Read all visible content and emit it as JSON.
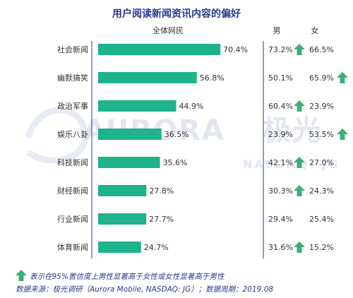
{
  "chart_data": {
    "type": "bar",
    "title": "用户阅读新闻资讯内容的偏好",
    "series_label": "全体网民",
    "male_label": "男",
    "female_label": "女",
    "categories": [
      "社会新闻",
      "幽默搞笑",
      "政治军事",
      "娱乐八卦",
      "科技新闻",
      "财经新闻",
      "行业新闻",
      "体育新闻"
    ],
    "values": [
      70.4,
      56.8,
      44.9,
      36.5,
      35.6,
      27.8,
      27.7,
      24.7
    ],
    "value_labels": [
      "70.4%",
      "56.8%",
      "44.9%",
      "36.5%",
      "35.6%",
      "27.8%",
      "27.7%",
      "24.7%"
    ],
    "male": [
      "73.2%",
      "50.1%",
      "60.4%",
      "23.9%",
      "42.1%",
      "30.3%",
      "29.4%",
      "31.6%"
    ],
    "female": [
      "66.5%",
      "65.9%",
      "23.9%",
      "53.5%",
      "27.0%",
      "24.3%",
      "25.4%",
      "15.2%"
    ],
    "male_significant": [
      true,
      false,
      true,
      false,
      true,
      true,
      false,
      true
    ],
    "female_significant": [
      false,
      true,
      false,
      true,
      false,
      false,
      false,
      false
    ],
    "xlim": [
      0,
      100
    ],
    "colors": {
      "bar": "#1db38b",
      "arrow": "#3dae7a",
      "title": "#2b3a8f"
    }
  },
  "watermark": {
    "brand": "AURORA",
    "brand_cn": "极光",
    "sub": "NASDAQ: JG"
  },
  "footer": {
    "legend_text": "表示在95%置信度上男性显著高于女性或女性显著高于男性",
    "source": "数据来源：极光调研（Aurora Mobile, NASDAQ: JG）；数据周期：2019.08"
  }
}
